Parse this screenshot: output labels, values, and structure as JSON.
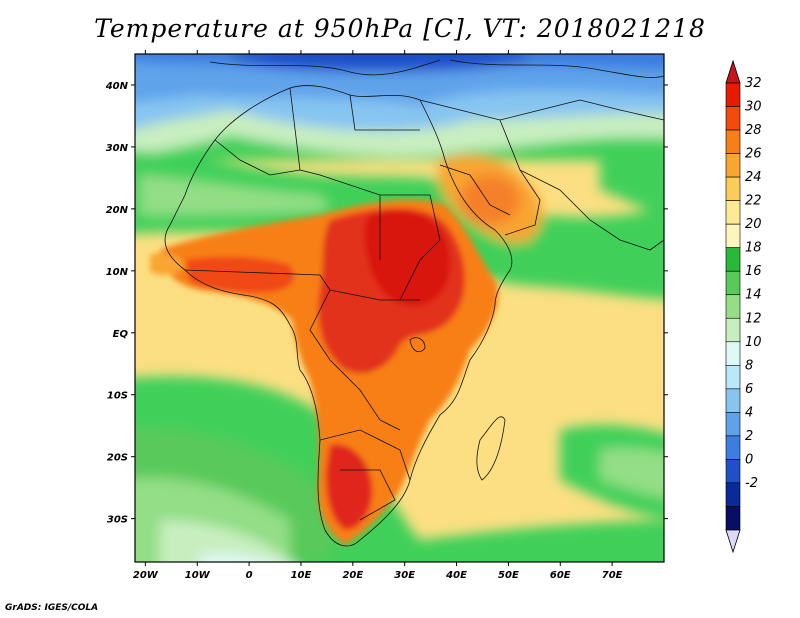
{
  "title": "Temperature at 950hPa [C], VT: 2018021218",
  "footer": "GrADS: IGES/COLA",
  "map": {
    "lon_range": [
      -22,
      80
    ],
    "lat_range": [
      -37,
      45
    ],
    "lon_ticks": [
      {
        "value": -20,
        "label": "20W"
      },
      {
        "value": -10,
        "label": "10W"
      },
      {
        "value": 0,
        "label": "0"
      },
      {
        "value": 10,
        "label": "10E"
      },
      {
        "value": 20,
        "label": "20E"
      },
      {
        "value": 30,
        "label": "30E"
      },
      {
        "value": 40,
        "label": "40E"
      },
      {
        "value": 50,
        "label": "50E"
      },
      {
        "value": 60,
        "label": "60E"
      },
      {
        "value": 70,
        "label": "70E"
      }
    ],
    "lat_ticks": [
      {
        "value": 40,
        "label": "40N"
      },
      {
        "value": 30,
        "label": "30N"
      },
      {
        "value": 20,
        "label": "20N"
      },
      {
        "value": 10,
        "label": "10N"
      },
      {
        "value": 0,
        "label": "EQ"
      },
      {
        "value": -10,
        "label": "10S"
      },
      {
        "value": -20,
        "label": "20S"
      },
      {
        "value": -30,
        "label": "30S"
      }
    ]
  },
  "colorbar": {
    "labels": [
      "32",
      "30",
      "28",
      "26",
      "24",
      "22",
      "20",
      "18",
      "16",
      "14",
      "12",
      "10",
      "8",
      "6",
      "4",
      "2",
      "0",
      "-2"
    ],
    "colors": [
      "#e61c00",
      "#f34b0c",
      "#f87f17",
      "#f9a531",
      "#fbcd58",
      "#fcea94",
      "#fcf5bd",
      "#29b938",
      "#59c95a",
      "#93de86",
      "#c8eec0",
      "#e0f8f6",
      "#b9e8f8",
      "#87c5f1",
      "#5ea3ea",
      "#3b7de0",
      "#1f50ca",
      "#0a2a9a",
      "#070f64"
    ],
    "top_arrow_color": "#c8141a",
    "bottom_arrow_color": "#ddd9f8"
  }
}
